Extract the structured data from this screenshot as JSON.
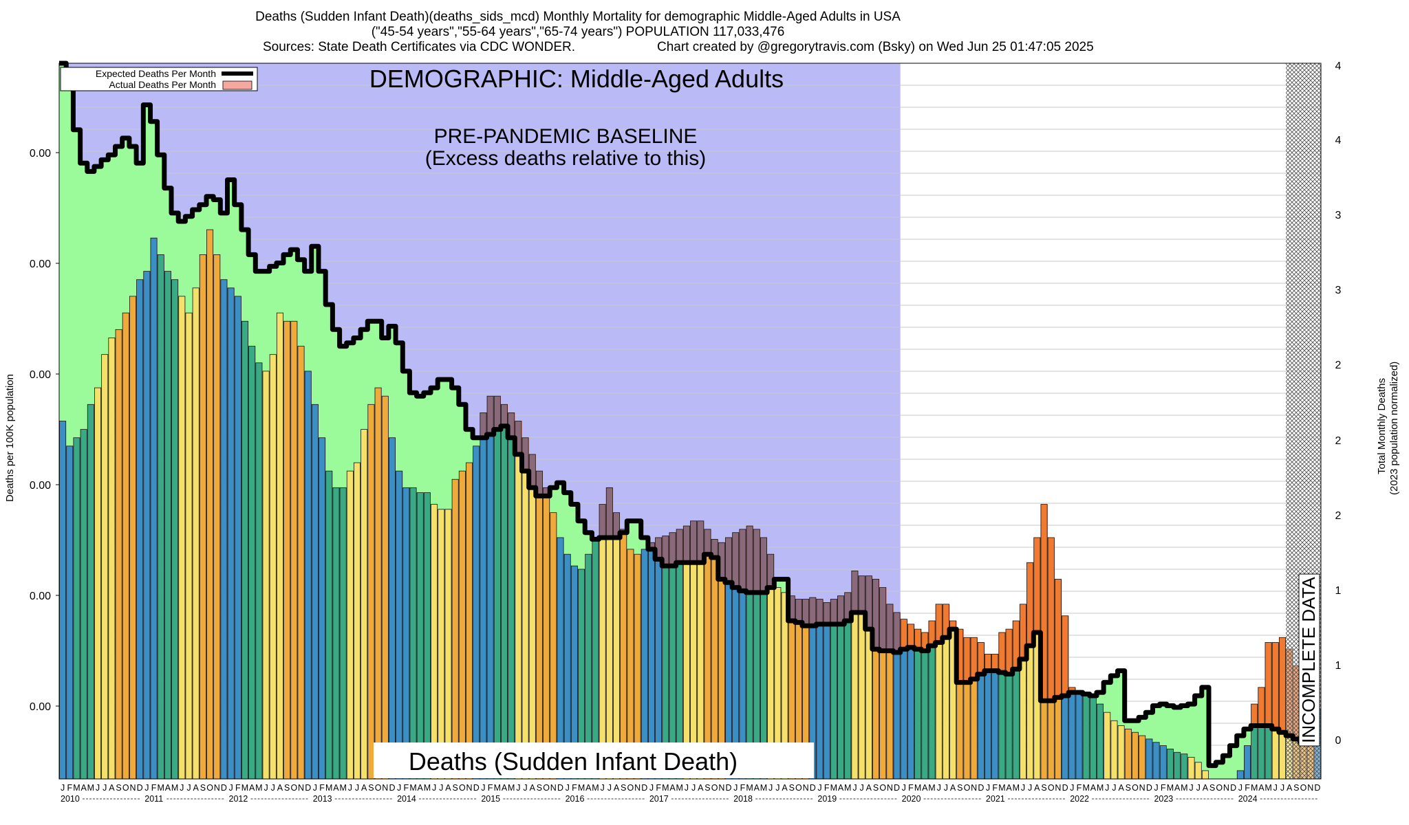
{
  "header": {
    "line1": "Deaths (Sudden Infant Death)(deaths_sids_mcd) Monthly Mortality for demographic Middle-Aged Adults in USA",
    "line2": "(\"45-54 years\",\"55-64 years\",\"65-74 years\") POPULATION 117,033,476",
    "sources": "Sources: State Death Certificates via CDC WONDER.",
    "credit": "Chart created by @gregorytravis.com (Bsky) on Wed Jun 25 01:47:05 2025"
  },
  "colors": {
    "baseline_shade": "#babaf7",
    "deficit": "#9bfb9b",
    "excess": "#f4a8a0",
    "expected_line": "#000000",
    "bar_winter": "#3b8fc4",
    "bar_spring": "#3aaa85",
    "bar_summer": "#f5e06a",
    "bar_fall": "#f0aa3c"
  },
  "chart_data": {
    "type": "bar",
    "title": "DEMOGRAPHIC: Middle-Aged Adults",
    "baseline_label_1": "PRE-PANDEMIC BASELINE",
    "baseline_label_2": "(Excess deaths relative to this)",
    "cause_label": "Deaths (Sudden Infant Death)",
    "incomplete_label": "INCOMPLETE DATA",
    "ylabel_left": "Deaths per 100K population",
    "ylabel_right_1": "Total Monthly Deaths",
    "ylabel_right_2": "(2023 population normalized)",
    "legend": {
      "expected": "Expected Deaths Per Month",
      "actual": "Actual Deaths Per Month",
      "placement": "top-left"
    },
    "grid": true,
    "y_left_ticks": [
      "0.00",
      "0.00",
      "0.00",
      "0.00",
      "0.00",
      "0.00"
    ],
    "y_right_ticks": [
      "4",
      "4",
      "3",
      "3",
      "2",
      "2",
      "2",
      "1",
      "1",
      "0"
    ],
    "month_letters": [
      "J",
      "F",
      "M",
      "A",
      "M",
      "J",
      "J",
      "A",
      "S",
      "O",
      "N",
      "D"
    ],
    "years": [
      "2010",
      "2011",
      "2012",
      "2013",
      "2014",
      "2015",
      "2016",
      "2017",
      "2018",
      "2019",
      "2020",
      "2021",
      "2022",
      "2023",
      "2024"
    ],
    "ylim": [
      0,
      4.3
    ],
    "baseline_end_month_index": 120,
    "incomplete_start_month_index": 175,
    "actual": [
      2.15,
      2.0,
      2.05,
      2.1,
      2.25,
      2.35,
      2.55,
      2.65,
      2.7,
      2.8,
      2.9,
      3.0,
      3.05,
      3.25,
      3.15,
      3.05,
      3.0,
      2.9,
      2.8,
      2.95,
      3.15,
      3.3,
      3.15,
      3.0,
      2.95,
      2.9,
      2.75,
      2.6,
      2.5,
      2.45,
      2.55,
      2.8,
      2.75,
      2.75,
      2.6,
      2.45,
      2.25,
      2.05,
      1.85,
      1.75,
      1.75,
      1.85,
      1.9,
      2.1,
      2.25,
      2.35,
      2.3,
      2.05,
      1.85,
      1.75,
      1.75,
      1.72,
      1.72,
      1.65,
      1.62,
      1.62,
      1.8,
      1.85,
      1.9,
      2.0,
      2.2,
      2.3,
      2.3,
      2.25,
      2.2,
      2.15,
      2.05,
      1.95,
      1.85,
      1.75,
      1.6,
      1.45,
      1.35,
      1.28,
      1.26,
      1.35,
      1.45,
      1.65,
      1.75,
      1.6,
      1.5,
      1.38,
      1.35,
      1.38,
      1.42,
      1.45,
      1.46,
      1.48,
      1.5,
      1.52,
      1.55,
      1.55,
      1.5,
      1.44,
      1.42,
      1.45,
      1.48,
      1.5,
      1.52,
      1.5,
      1.45,
      1.35,
      1.15,
      1.12,
      1.1,
      1.08,
      1.08,
      1.09,
      1.08,
      1.06,
      1.08,
      1.1,
      1.12,
      1.25,
      1.22,
      1.22,
      1.2,
      1.15,
      1.05,
      1.0,
      0.96,
      0.93,
      0.9,
      0.88,
      0.95,
      1.05,
      1.05,
      0.95,
      0.9,
      0.85,
      0.85,
      0.82,
      0.75,
      0.75,
      0.88,
      0.9,
      0.95,
      1.05,
      1.3,
      1.45,
      1.65,
      1.45,
      1.2,
      0.98,
      0.55,
      0.53,
      0.5,
      0.5,
      0.45,
      0.4,
      0.35,
      0.32,
      0.3,
      0.28,
      0.26,
      0.24,
      0.22,
      0.2,
      0.18,
      0.16,
      0.15,
      0.13,
      0.1,
      0.05,
      -0.1,
      -0.15,
      -0.2,
      -0.15,
      0.05,
      0.2,
      0.45,
      0.55,
      0.82,
      0.82,
      0.85,
      0.78,
      0.68,
      0.6,
      0.55,
      0.42,
      0.42,
      0.42,
      0.42,
      0.42
    ],
    "expected": [
      4.4,
      4.15,
      3.9,
      3.7,
      3.65,
      3.68,
      3.72,
      3.75,
      3.8,
      3.85,
      3.8,
      3.7,
      4.05,
      3.95,
      3.75,
      3.55,
      3.4,
      3.35,
      3.38,
      3.42,
      3.45,
      3.5,
      3.48,
      3.4,
      3.6,
      3.45,
      3.3,
      3.15,
      3.05,
      3.05,
      3.08,
      3.1,
      3.15,
      3.18,
      3.12,
      3.05,
      3.2,
      3.05,
      2.85,
      2.7,
      2.6,
      2.62,
      2.65,
      2.7,
      2.75,
      2.75,
      2.65,
      2.72,
      2.62,
      2.45,
      2.32,
      2.3,
      2.32,
      2.35,
      2.4,
      2.4,
      2.35,
      2.25,
      2.1,
      2.05,
      2.05,
      2.07,
      2.1,
      2.12,
      2.05,
      1.95,
      1.85,
      1.75,
      1.7,
      1.7,
      1.75,
      1.78,
      1.72,
      1.65,
      1.55,
      1.48,
      1.44,
      1.45,
      1.45,
      1.45,
      1.48,
      1.55,
      1.55,
      1.45,
      1.38,
      1.32,
      1.28,
      1.28,
      1.3,
      1.3,
      1.3,
      1.3,
      1.35,
      1.33,
      1.2,
      1.18,
      1.15,
      1.13,
      1.12,
      1.12,
      1.12,
      1.15,
      1.2,
      1.2,
      0.95,
      0.94,
      0.92,
      0.92,
      0.93,
      0.93,
      0.93,
      0.93,
      0.95,
      1.0,
      1.0,
      0.9,
      0.78,
      0.77,
      0.77,
      0.76,
      0.78,
      0.79,
      0.78,
      0.77,
      0.8,
      0.82,
      0.85,
      0.9,
      0.58,
      0.58,
      0.6,
      0.63,
      0.65,
      0.65,
      0.64,
      0.63,
      0.66,
      0.72,
      0.8,
      0.88,
      0.47,
      0.47,
      0.49,
      0.5,
      0.52,
      0.52,
      0.51,
      0.5,
      0.52,
      0.58,
      0.62,
      0.65,
      0.35,
      0.35,
      0.37,
      0.4,
      0.44,
      0.45,
      0.44,
      0.43,
      0.44,
      0.45,
      0.5,
      0.55,
      0.08,
      0.1,
      0.14,
      0.2,
      0.26,
      0.3,
      0.32,
      0.32,
      0.32,
      0.3,
      0.28,
      0.26,
      0.24,
      0.22
    ]
  }
}
